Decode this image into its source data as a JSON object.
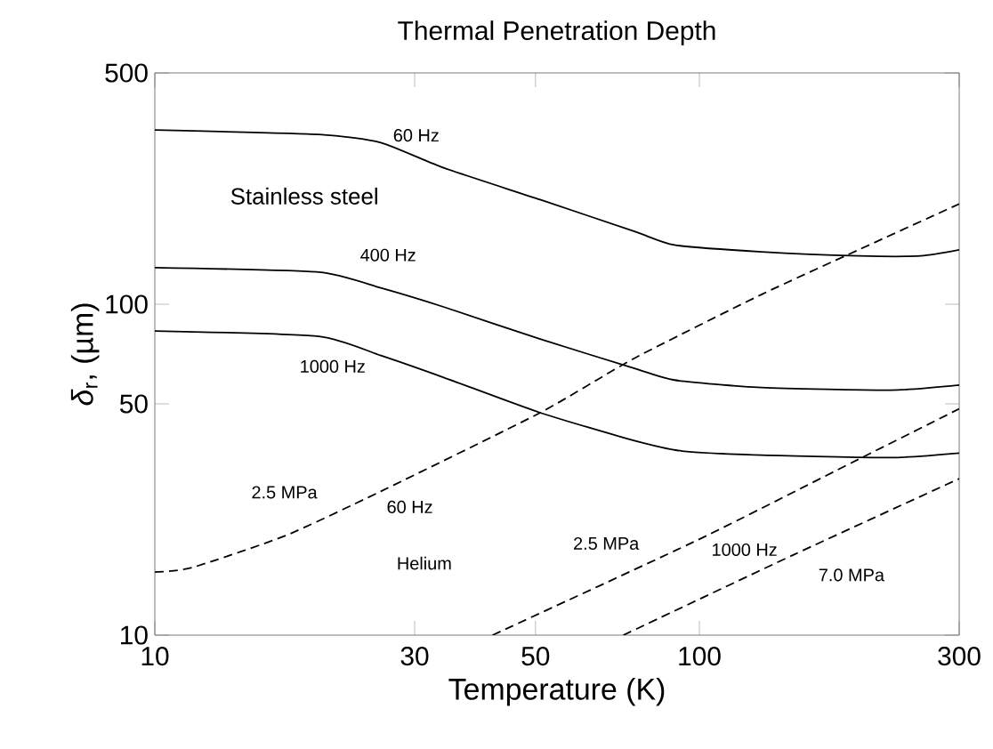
{
  "chart_data": {
    "type": "line",
    "title": "Thermal Penetration Depth",
    "xlabel": "Temperature (K)",
    "ylabel": "*δ*$_{r}$, (µm)",
    "log": "xy",
    "xlim": [
      10,
      300
    ],
    "ylim": [
      10,
      500
    ],
    "xticks": [
      10,
      30,
      50,
      100,
      300
    ],
    "yticks": [
      10,
      50,
      100,
      500
    ],
    "marker": "none",
    "series": [
      {
        "color": "#000000",
        "line_style": "solid",
        "x": [
          10,
          20,
          26,
          34,
          51,
          76,
          90,
          130,
          196,
          255,
          300
        ],
        "values": [
          336,
          326,
          308,
          258,
          207,
          166,
          151,
          144,
          140,
          140,
          146
        ]
      },
      {
        "color": "#000000",
        "line_style": "solid",
        "x": [
          10,
          20,
          26,
          34,
          51,
          76,
          90,
          130,
          225,
          300
        ],
        "values": [
          129,
          125,
          112,
          98,
          78.5,
          64,
          59,
          56,
          55,
          57
        ]
      },
      {
        "color": "#000000",
        "line_style": "solid",
        "x": [
          10,
          20,
          26,
          34,
          51,
          76,
          93,
          130,
          225,
          300
        ],
        "values": [
          83,
          80,
          70,
          60,
          47,
          38.7,
          36,
          35,
          34.4,
          35.5
        ]
      },
      {
        "color": "#000000",
        "line_style": "dashed",
        "x": [
          10,
          11.7,
          17.4,
          26,
          51,
          76,
          130,
          196,
          300
        ],
        "values": [
          15.5,
          16,
          20,
          27.2,
          47,
          68.7,
          107,
          146,
          201
        ]
      },
      {
        "color": "#000000",
        "line_style": "dashed",
        "x": [
          41.7,
          100,
          196,
          300
        ],
        "values": [
          10,
          19.5,
          34,
          48.3
        ]
      },
      {
        "color": "#000000",
        "line_style": "dashed",
        "x": [
          72.5,
          149,
          300
        ],
        "values": [
          10,
          17.5,
          29.7
        ]
      }
    ],
    "annotations": [
      "60 Hz",
      "Stainless steel",
      "400 Hz",
      "1000 Hz",
      "2.5 MPa",
      "60 Hz",
      "Helium",
      "2.5 MPa",
      "1000 Hz",
      "7.0 MPa"
    ]
  }
}
